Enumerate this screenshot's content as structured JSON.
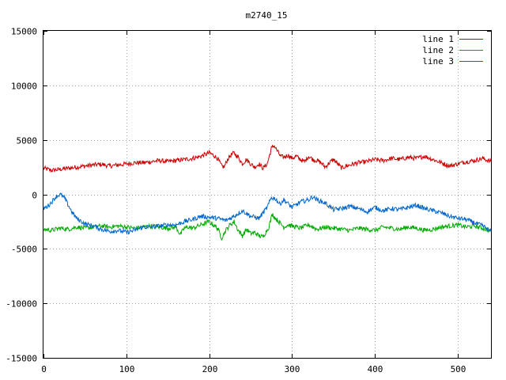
{
  "chart_data": {
    "type": "line",
    "title": "m2740_15",
    "xlabel": "",
    "ylabel": "",
    "xlim": [
      0,
      540
    ],
    "ylim": [
      -15000,
      15000
    ],
    "x_ticks": [
      0,
      100,
      200,
      300,
      400,
      500
    ],
    "y_ticks": [
      -15000,
      -10000,
      -5000,
      0,
      5000,
      10000,
      15000
    ],
    "grid": true,
    "legend_position": "top-right",
    "series": [
      {
        "name": "line 1",
        "color": "#cc0000",
        "x": [
          0,
          10,
          20,
          30,
          40,
          50,
          60,
          70,
          80,
          90,
          100,
          110,
          120,
          130,
          140,
          150,
          160,
          170,
          180,
          190,
          200,
          205,
          210,
          215,
          218,
          222,
          226,
          230,
          235,
          240,
          245,
          250,
          255,
          260,
          265,
          270,
          275,
          278,
          282,
          286,
          290,
          295,
          300,
          305,
          310,
          315,
          320,
          325,
          330,
          335,
          340,
          345,
          350,
          355,
          360,
          365,
          370,
          380,
          390,
          400,
          410,
          420,
          430,
          440,
          450,
          460,
          470,
          480,
          490,
          500,
          510,
          520,
          530,
          540
        ],
        "y": [
          2400,
          2200,
          2300,
          2400,
          2500,
          2600,
          2700,
          2750,
          2600,
          2700,
          2800,
          2900,
          2900,
          3000,
          3100,
          3000,
          3100,
          3200,
          3300,
          3500,
          3800,
          3600,
          3300,
          2600,
          2500,
          3200,
          3600,
          3800,
          3400,
          2800,
          3200,
          2800,
          2500,
          2800,
          2400,
          2800,
          4200,
          4500,
          4000,
          3500,
          3400,
          3600,
          3300,
          3500,
          3200,
          3000,
          3500,
          3200,
          3100,
          2900,
          2500,
          2900,
          3200,
          2800,
          2400,
          2600,
          2700,
          2900,
          3000,
          3200,
          3100,
          3300,
          3200,
          3400,
          3300,
          3500,
          3200,
          2900,
          2600,
          2800,
          3000,
          3100,
          3300,
          3000
        ]
      },
      {
        "name": "line 2",
        "color": "#00aa00",
        "x": [
          0,
          10,
          20,
          30,
          40,
          50,
          60,
          70,
          80,
          90,
          100,
          110,
          120,
          130,
          140,
          150,
          160,
          165,
          170,
          175,
          180,
          190,
          200,
          205,
          210,
          215,
          220,
          225,
          230,
          235,
          240,
          245,
          250,
          255,
          260,
          265,
          268,
          272,
          276,
          280,
          285,
          290,
          295,
          300,
          310,
          320,
          330,
          340,
          350,
          360,
          370,
          380,
          390,
          400,
          410,
          420,
          430,
          440,
          450,
          460,
          470,
          480,
          490,
          500,
          510,
          520,
          530,
          540
        ],
        "y": [
          -3200,
          -3300,
          -3100,
          -3200,
          -3000,
          -3100,
          -3000,
          -2900,
          -3000,
          -2900,
          -3000,
          -3100,
          -3000,
          -2900,
          -3000,
          -3100,
          -3000,
          -3700,
          -3100,
          -3000,
          -3100,
          -2800,
          -2500,
          -2800,
          -3100,
          -4000,
          -3300,
          -2800,
          -2500,
          -3300,
          -3800,
          -3200,
          -3600,
          -3500,
          -3800,
          -3900,
          -3500,
          -3000,
          -1800,
          -2200,
          -2600,
          -3000,
          -2800,
          -2900,
          -3100,
          -2800,
          -3200,
          -3000,
          -3100,
          -3200,
          -3300,
          -3100,
          -3200,
          -3300,
          -3000,
          -3100,
          -3200,
          -3000,
          -3100,
          -3300,
          -3200,
          -3000,
          -2900,
          -2800,
          -3000,
          -2900,
          -3100,
          -3400
        ]
      },
      {
        "name": "line 3",
        "color": "#0066cc",
        "x": [
          0,
          5,
          10,
          15,
          20,
          25,
          30,
          35,
          40,
          50,
          60,
          70,
          80,
          90,
          100,
          110,
          120,
          130,
          140,
          150,
          160,
          170,
          180,
          190,
          200,
          210,
          220,
          230,
          240,
          250,
          260,
          270,
          275,
          280,
          285,
          290,
          300,
          310,
          320,
          325,
          330,
          340,
          350,
          360,
          370,
          380,
          390,
          400,
          410,
          420,
          430,
          440,
          450,
          460,
          470,
          480,
          490,
          500,
          510,
          520,
          530,
          540
        ],
        "y": [
          -1300,
          -1100,
          -700,
          -200,
          0,
          -300,
          -1000,
          -1700,
          -2200,
          -2700,
          -2900,
          -3200,
          -3400,
          -3300,
          -3500,
          -3300,
          -3000,
          -3000,
          -2900,
          -2800,
          -2800,
          -2500,
          -2300,
          -2000,
          -2100,
          -2200,
          -2400,
          -2000,
          -1500,
          -2000,
          -2200,
          -1200,
          -300,
          -400,
          -900,
          -500,
          -1200,
          -700,
          -500,
          -200,
          -500,
          -800,
          -1400,
          -1300,
          -1100,
          -1300,
          -1600,
          -1200,
          -1500,
          -1300,
          -1400,
          -1200,
          -1000,
          -1300,
          -1500,
          -1700,
          -2000,
          -2200,
          -2300,
          -2600,
          -2900,
          -3400
        ]
      }
    ]
  }
}
